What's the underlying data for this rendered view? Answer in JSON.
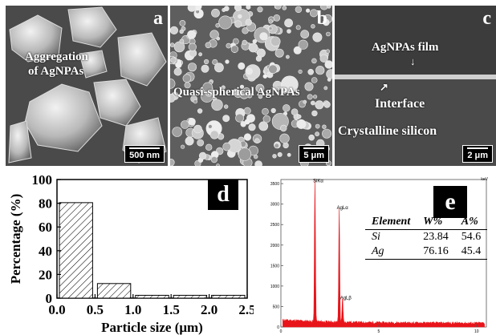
{
  "panels": {
    "a": {
      "letter": "a",
      "scale": "500 nm",
      "label_line1": "Aggregation",
      "label_line2": "of AgNPAs"
    },
    "b": {
      "letter": "b",
      "scale": "5 μm",
      "label": "Quasi-spherical AgNPAs"
    },
    "c": {
      "letter": "c",
      "scale": "2 μm",
      "film": "AgNPAs film",
      "interface": "Interface",
      "substrate": "Crystalline silicon"
    },
    "d": {
      "letter": "d"
    },
    "e": {
      "letter": "e"
    }
  },
  "chart_data": [
    {
      "type": "bar",
      "panel": "d",
      "xlabel": "Particle size (μm)",
      "ylabel": "Percentage (%)",
      "bins": [
        [
          0.0,
          0.5
        ],
        [
          0.5,
          1.0
        ],
        [
          1.0,
          1.5
        ],
        [
          1.5,
          2.0
        ],
        [
          2.0,
          2.5
        ]
      ],
      "values": [
        80.5,
        12.3,
        2.4,
        2.4,
        2.4
      ],
      "xlim": [
        0.0,
        2.5
      ],
      "ylim": [
        0,
        100
      ],
      "xticks": [
        "0.0",
        "0.5",
        "1.0",
        "1.5",
        "2.0",
        "2.5"
      ],
      "yticks": [
        "0",
        "20",
        "40",
        "60",
        "80",
        "100"
      ],
      "fill": "hatched"
    },
    {
      "type": "line",
      "panel": "e",
      "xlabel": "keV",
      "xlim": [
        0,
        10.5
      ],
      "ylim": [
        0,
        3600
      ],
      "xticks": [
        "0",
        "5",
        "10"
      ],
      "yticks": [
        "0",
        "500",
        "1000",
        "1500",
        "2000",
        "2500",
        "3000",
        "3500"
      ],
      "peaks": [
        {
          "label": "SiKα",
          "x": 1.74,
          "y": 3450
        },
        {
          "label": "AgLα",
          "x": 2.98,
          "y": 2800
        },
        {
          "label": "AgLβ",
          "x": 3.15,
          "y": 600
        }
      ],
      "color": "#e8141a"
    }
  ],
  "composition_table": {
    "headers": [
      "Element",
      "W%",
      "A%"
    ],
    "rows": [
      {
        "element": "Si",
        "w": "23.84",
        "a": "54.6"
      },
      {
        "element": "Ag",
        "w": "76.16",
        "a": "45.4"
      }
    ]
  }
}
